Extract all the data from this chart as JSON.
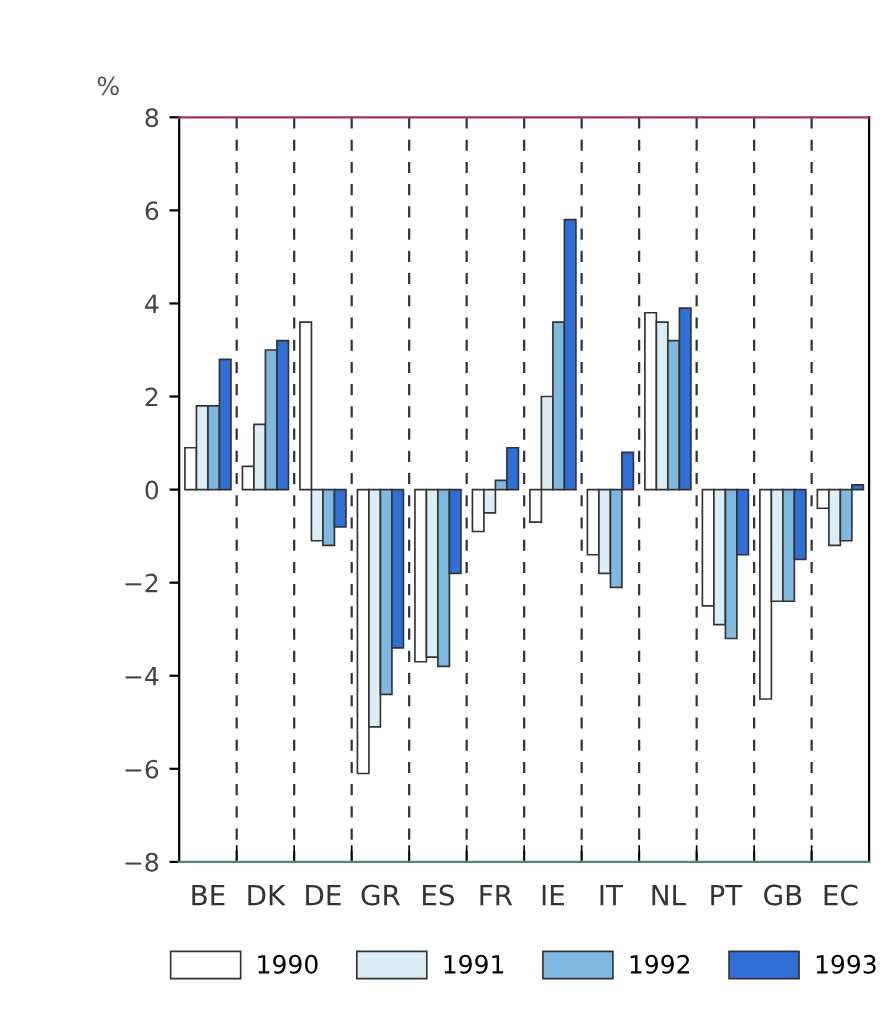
{
  "chart_data": {
    "type": "bar",
    "ylabel": "%",
    "categories": [
      "BE",
      "DK",
      "DE",
      "GR",
      "ES",
      "FR",
      "IE",
      "IT",
      "NL",
      "PT",
      "GB",
      "EC"
    ],
    "series": [
      {
        "name": "1990",
        "color": "#ffffff",
        "values": [
          0.9,
          0.5,
          3.6,
          -6.1,
          -3.7,
          -0.9,
          -0.7,
          -1.4,
          3.8,
          -2.5,
          -4.5,
          -0.4
        ]
      },
      {
        "name": "1991",
        "color": "#dceef5",
        "values": [
          1.8,
          1.4,
          -1.1,
          -5.1,
          -3.6,
          -0.5,
          2.0,
          -1.8,
          3.6,
          -2.9,
          -2.4,
          -1.2
        ]
      },
      {
        "name": "1992",
        "color": "#7fb8e0",
        "values": [
          1.8,
          3.0,
          -1.2,
          -4.4,
          -3.8,
          0.2,
          3.6,
          -2.1,
          3.2,
          -3.2,
          -2.4,
          -1.1
        ]
      },
      {
        "name": "1993",
        "color": "#2f6fd6",
        "values": [
          2.8,
          3.2,
          -0.8,
          -3.4,
          -1.8,
          0.9,
          5.8,
          0.8,
          3.9,
          -1.4,
          -1.5,
          0.1
        ]
      }
    ],
    "ylim": [
      -8,
      8
    ],
    "yticks": [
      {
        "value": -8,
        "label": "−8"
      },
      {
        "value": -6,
        "label": "−6"
      },
      {
        "value": -4,
        "label": "−4"
      },
      {
        "value": -2,
        "label": "−2"
      },
      0,
      2,
      4,
      6,
      8
    ],
    "grid": "x",
    "legend": "bottom"
  }
}
